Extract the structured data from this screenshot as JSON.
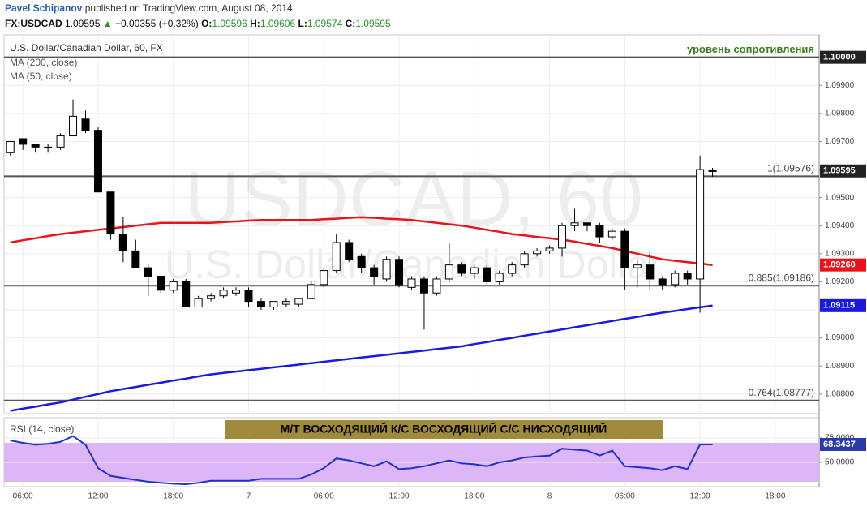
{
  "header": {
    "author": "Pavel Schipanov",
    "source": "published on TradingView.com, August 08, 2014",
    "symbol": "FX:USDCAD",
    "last": "1.09595",
    "arrow": "▲",
    "change": " +0.00355 (+0.32%)",
    "quote": [
      {
        "label": "O:",
        "value": "1.09596"
      },
      {
        "label": "H:",
        "value": "1.09606"
      },
      {
        "label": "L:",
        "value": "1.09574"
      },
      {
        "label": "C:",
        "value": "1.09595"
      }
    ]
  },
  "chart_data": [
    {
      "type": "candlestick",
      "title": "U.S. Dollar/Canadian Dollar, 60, FX",
      "watermark": "USDCAD, 60",
      "watermark_subtitle": "U.S. Dollar/Canadian Dollar",
      "annotation": "М/Т ВОСХОДЯЩИЙ К/С ВОСХОДЯЩИЙ С/С НИСХОДЯЩИЙ",
      "categories": [
        null,
        "06:00",
        null,
        null,
        null,
        null,
        null,
        "12:00",
        null,
        null,
        null,
        null,
        null,
        "18:00",
        null,
        null,
        null,
        null,
        null,
        "7",
        null,
        null,
        null,
        null,
        null,
        "06:00",
        null,
        null,
        null,
        null,
        null,
        "12:00",
        null,
        null,
        null,
        null,
        null,
        "18:00",
        null,
        null,
        null,
        null,
        null,
        "8",
        null,
        null,
        null,
        null,
        null,
        "06:00",
        null,
        null,
        null,
        null,
        null,
        "12:00",
        null,
        null,
        null,
        null,
        null,
        "18:00",
        null,
        null,
        null
      ],
      "open": [
        1.0966,
        1.0971,
        1.0969,
        1.0968,
        1.0968,
        1.0972,
        1.0978,
        1.0974,
        1.0952,
        1.0937,
        1.0931,
        1.0925,
        1.0922,
        1.0917,
        1.092,
        1.0911,
        1.0914,
        1.0915,
        1.0916,
        1.0917,
        1.0913,
        1.0911,
        1.0912,
        1.0912,
        1.0914,
        1.0919,
        1.0924,
        1.0934,
        1.0929,
        1.0925,
        1.0921,
        1.0928,
        1.0918,
        1.0921,
        1.0916,
        1.0921,
        1.0926,
        1.0923,
        1.0925,
        1.092,
        1.0923,
        1.0926,
        1.093,
        1.0931,
        1.0932,
        1.094,
        1.0941,
        1.094,
        1.0936,
        1.0938,
        1.0925,
        1.0926,
        1.0921,
        1.0919,
        1.0923,
        1.0921,
        1.09596,
        null,
        null,
        null,
        null,
        null,
        null,
        null,
        null
      ],
      "high": [
        1.097,
        1.0971,
        1.0969,
        1.0969,
        1.0973,
        1.0985,
        1.0981,
        1.0975,
        1.0952,
        1.0943,
        1.0935,
        1.0926,
        1.0922,
        1.0921,
        1.0921,
        1.0915,
        1.0916,
        1.0918,
        1.0918,
        1.0918,
        1.0914,
        1.0913,
        1.0914,
        1.0914,
        1.092,
        1.0925,
        1.0937,
        1.0935,
        1.093,
        1.0926,
        1.0929,
        1.0929,
        1.0922,
        1.0922,
        1.0922,
        1.0934,
        1.0927,
        1.0926,
        1.0926,
        1.0924,
        1.0927,
        1.0931,
        1.0932,
        1.0933,
        1.0941,
        1.0946,
        1.0941,
        1.0941,
        1.0939,
        1.0939,
        1.0928,
        1.0931,
        1.0922,
        1.0924,
        1.0924,
        1.0965,
        1.09606,
        null,
        null,
        null,
        null,
        null,
        null,
        null,
        null
      ],
      "low": [
        1.0965,
        1.0967,
        1.0966,
        1.0966,
        1.0967,
        1.0972,
        1.0973,
        1.0952,
        1.0935,
        1.0927,
        1.0925,
        1.0915,
        1.0916,
        1.0916,
        1.0911,
        1.0911,
        1.0913,
        1.0914,
        1.0915,
        1.0911,
        1.091,
        1.091,
        1.0911,
        1.0911,
        1.0914,
        1.0918,
        1.0923,
        1.0927,
        1.0923,
        1.0919,
        1.092,
        1.0918,
        1.0917,
        1.0903,
        1.0915,
        1.092,
        1.0922,
        1.0921,
        1.0919,
        1.0919,
        1.0922,
        1.0925,
        1.0929,
        1.093,
        1.0929,
        1.0938,
        1.0938,
        1.0934,
        1.0935,
        1.0917,
        1.0918,
        1.0917,
        1.0917,
        1.0918,
        1.0919,
        1.0909,
        1.09574,
        null,
        null,
        null,
        null,
        null,
        null,
        null,
        null
      ],
      "close": [
        1.097,
        1.0969,
        1.0968,
        1.0968,
        1.0972,
        1.0979,
        1.0974,
        1.0952,
        1.0937,
        1.0931,
        1.0925,
        1.0922,
        1.0917,
        1.092,
        1.0911,
        1.0914,
        1.0915,
        1.0917,
        1.0917,
        1.0913,
        1.0911,
        1.0913,
        1.0913,
        1.0914,
        1.0919,
        1.0924,
        1.0934,
        1.0928,
        1.0925,
        1.0922,
        1.0928,
        1.0919,
        1.0921,
        1.0916,
        1.0921,
        1.0926,
        1.0923,
        1.0925,
        1.092,
        1.0923,
        1.0926,
        1.093,
        1.0931,
        1.0932,
        1.094,
        1.0941,
        1.094,
        1.0936,
        1.0938,
        1.0925,
        1.0926,
        1.0921,
        1.0919,
        1.0923,
        1.0921,
        1.096,
        1.09595,
        null,
        null,
        null,
        null,
        null,
        null,
        null,
        null
      ],
      "up_color": "#ffffff",
      "down_color": "#000000",
      "series": [
        {
          "name": "MA (200, close)",
          "color": "#1a1adf",
          "values": [
            1.0874,
            1.08748,
            1.08755,
            1.08763,
            1.0877,
            1.0878,
            1.0879,
            1.088,
            1.0881,
            1.08818,
            1.08825,
            1.08833,
            1.0884,
            1.08848,
            1.08855,
            1.08863,
            1.0887,
            1.08875,
            1.0888,
            1.08885,
            1.0889,
            1.08895,
            1.089,
            1.08905,
            1.0891,
            1.08915,
            1.0892,
            1.08925,
            1.0893,
            1.08935,
            1.0894,
            1.08945,
            1.0895,
            1.08955,
            1.0896,
            1.08965,
            1.0897,
            1.08978,
            1.08985,
            1.08993,
            1.09,
            1.09008,
            1.09015,
            1.09023,
            1.0903,
            1.09038,
            1.09045,
            1.09053,
            1.0906,
            1.09068,
            1.09075,
            1.09083,
            1.0909,
            1.09096,
            1.09103,
            1.09109,
            1.09115,
            null,
            null,
            null,
            null,
            null,
            null,
            null,
            null
          ]
        },
        {
          "name": "MA (50, close)",
          "color": "#e8141a",
          "values": [
            1.0934,
            1.09348,
            1.09355,
            1.09363,
            1.0937,
            1.09375,
            1.0938,
            1.09385,
            1.0939,
            1.09395,
            1.094,
            1.09405,
            1.0941,
            1.0941,
            1.0941,
            1.0941,
            1.0941,
            1.09413,
            1.09415,
            1.09418,
            1.0942,
            1.0942,
            1.0942,
            1.0942,
            1.0942,
            1.09423,
            1.09425,
            1.09428,
            1.0943,
            1.09428,
            1.09425,
            1.09423,
            1.0942,
            1.09415,
            1.0941,
            1.09405,
            1.094,
            1.09393,
            1.09385,
            1.09378,
            1.0937,
            1.09365,
            1.0936,
            1.09355,
            1.0935,
            1.09343,
            1.09335,
            1.09328,
            1.0932,
            1.0931,
            1.093,
            1.0929,
            1.0928,
            1.09275,
            1.0927,
            1.09265,
            1.0926,
            null,
            null,
            null,
            null,
            null,
            null,
            null,
            null
          ]
        }
      ],
      "ylim": [
        1.0873,
        1.1008
      ],
      "yticks": [
        {
          "value": 1.088,
          "label": "1.08800"
        },
        {
          "value": 1.089,
          "label": "1.08900"
        },
        {
          "value": 1.09,
          "label": "1.09000"
        },
        {
          "value": 1.091,
          "label": "1.09100"
        },
        {
          "value": 1.092,
          "label": "1.09200"
        },
        {
          "value": 1.093,
          "label": "1.09300"
        },
        {
          "value": 1.094,
          "label": "1.09400"
        },
        {
          "value": 1.095,
          "label": "1.09500"
        },
        {
          "value": 1.096,
          "label": "1.09600"
        },
        {
          "value": 1.097,
          "label": "1.09700"
        },
        {
          "value": 1.098,
          "label": "1.09800"
        },
        {
          "value": 1.099,
          "label": "1.09900"
        }
      ],
      "grid": true,
      "levels": [
        {
          "value": 1.1,
          "label": "уровень сопротивления",
          "color": "#3b7d1e"
        },
        {
          "value": 1.09576,
          "label": "1(1.09576)"
        },
        {
          "value": 1.09186,
          "label": "0.885(1.09186)"
        },
        {
          "value": 1.08777,
          "label": "0.764(1.08777)"
        }
      ],
      "price_labels": [
        {
          "value": 1.1,
          "label": "1.10000",
          "color": "#222222"
        },
        {
          "value": 1.09595,
          "label": "1.09595",
          "color": "#222222"
        },
        {
          "value": 1.0926,
          "label": "1.09260",
          "color": "#e8141a"
        },
        {
          "value": 1.09115,
          "label": "1.09115",
          "color": "#1a1adf"
        }
      ]
    },
    {
      "type": "line",
      "title": "RSI (14, close)",
      "color": "#1f2fd1",
      "values": [
        72.5,
        70,
        68,
        69,
        71,
        77,
        68,
        44,
        36,
        34,
        32,
        30,
        29,
        28,
        27.5,
        29,
        31,
        31,
        31,
        31,
        33,
        33,
        33,
        33,
        37.5,
        44,
        54,
        52,
        49,
        46,
        51,
        43,
        44,
        46,
        49,
        52,
        49,
        48,
        46,
        50,
        52,
        55,
        56,
        57,
        64,
        63,
        62,
        57,
        62,
        46,
        45,
        44,
        42,
        46,
        43,
        68.3437,
        68.3437,
        null,
        null,
        null,
        null,
        null,
        null,
        null,
        null
      ],
      "band": [
        30,
        70
      ],
      "band_color": "#dcb6f7",
      "ylim": [
        25,
        95.8
      ],
      "yticks": [
        {
          "value": 75,
          "label": "75.0000"
        },
        {
          "value": 50,
          "label": "50.0000"
        }
      ],
      "price_labels": [
        {
          "value": 68.3437,
          "label": "68.3437",
          "color": "#2b3aa8"
        }
      ]
    }
  ]
}
